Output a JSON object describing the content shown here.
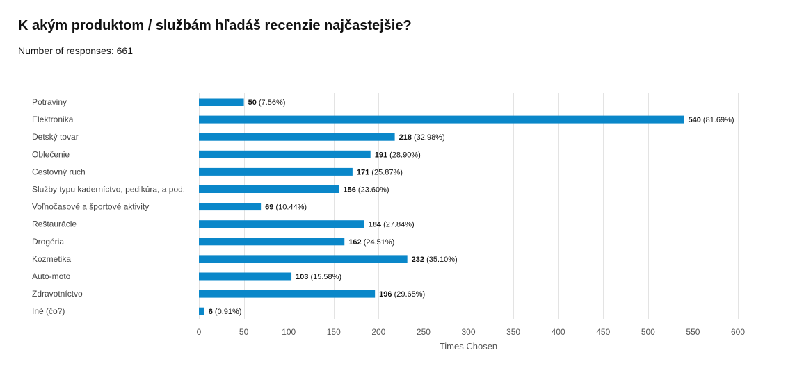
{
  "header": {
    "title": "K akým produktom / službám hľadáš recenzie najčastejšie?",
    "responses": "Number of responses: 661"
  },
  "colors": {
    "bar": "#0a87c9",
    "grid": "#e3e3e3"
  },
  "chart_data": {
    "type": "bar",
    "orientation": "horizontal",
    "categories": [
      "Potraviny",
      "Elektronika",
      "Detský tovar",
      "Oblečenie",
      "Cestovný ruch",
      "Služby typu kaderníctvo, pedikúra, a pod.",
      "Voľnočasové a športové aktivity",
      "Reštaurácie",
      "Drogéria",
      "Kozmetika",
      "Auto-moto",
      "Zdravotníctvo",
      "Iné (čo?)"
    ],
    "values": [
      50,
      540,
      218,
      191,
      171,
      156,
      69,
      184,
      162,
      232,
      103,
      196,
      6
    ],
    "percents": [
      "(7.56%)",
      "(81.69%)",
      "(32.98%)",
      "(28.90%)",
      "(25.87%)",
      "(23.60%)",
      "(10.44%)",
      "(27.84%)",
      "(24.51%)",
      "(35.10%)",
      "(15.58%)",
      "(29.65%)",
      "(0.91%)"
    ],
    "xlim": [
      0,
      600
    ],
    "xticks": [
      0,
      50,
      100,
      150,
      200,
      250,
      300,
      350,
      400,
      450,
      500,
      550,
      600
    ],
    "xlabel": "Times Chosen",
    "grid": true
  }
}
